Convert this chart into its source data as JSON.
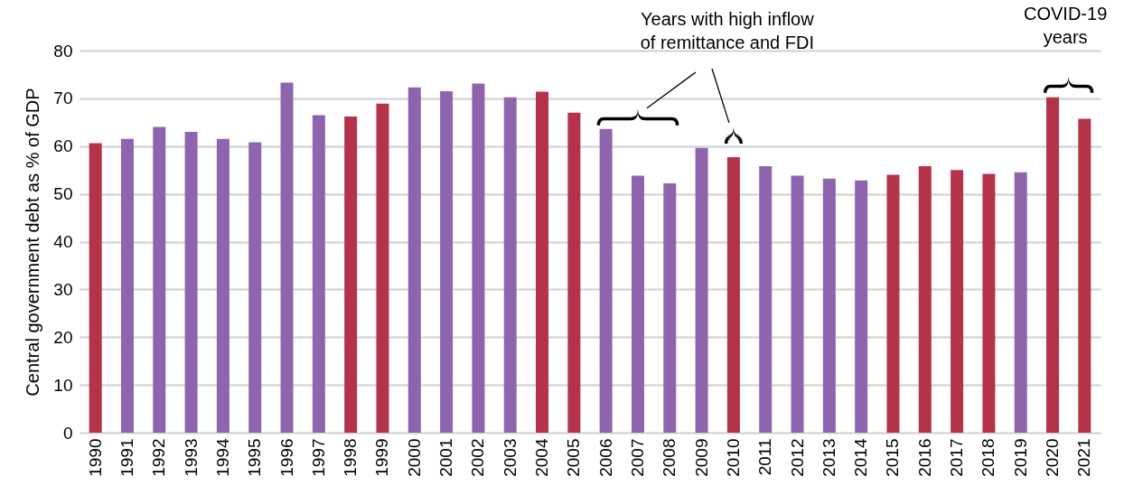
{
  "chart_data": {
    "type": "bar",
    "ylabel": "Central government debt as % of GDP",
    "categories": [
      "1990",
      "1991",
      "1992",
      "1993",
      "1994",
      "1995",
      "1996",
      "1997",
      "1998",
      "1999",
      "2000",
      "2001",
      "2002",
      "2003",
      "2004",
      "2005",
      "2006",
      "2007",
      "2008",
      "2009",
      "2010",
      "2011",
      "2012",
      "2013",
      "2014",
      "2015",
      "2016",
      "2017",
      "2018",
      "2019",
      "2020",
      "2021"
    ],
    "values": [
      60.6,
      61.5,
      64,
      63,
      61.5,
      60.8,
      73.3,
      66.5,
      66.2,
      68.9,
      72.3,
      71.5,
      73.1,
      70.2,
      71.4,
      67,
      63.6,
      53.8,
      52.2,
      59.6,
      57.7,
      55.8,
      53.8,
      53.2,
      52.8,
      54,
      55.8,
      55,
      54.2,
      54.5,
      70.2,
      65.7
    ],
    "colors": [
      "#b5334a",
      "#8e65ad",
      "#8e65ad",
      "#8e65ad",
      "#8e65ad",
      "#8e65ad",
      "#8e65ad",
      "#8e65ad",
      "#b5334a",
      "#b5334a",
      "#8e65ad",
      "#8e65ad",
      "#8e65ad",
      "#8e65ad",
      "#b5334a",
      "#b5334a",
      "#8e65ad",
      "#8e65ad",
      "#8e65ad",
      "#8e65ad",
      "#b5334a",
      "#8e65ad",
      "#8e65ad",
      "#8e65ad",
      "#8e65ad",
      "#b5334a",
      "#b5334a",
      "#b5334a",
      "#b5334a",
      "#8e65ad",
      "#b5334a",
      "#b5334a"
    ],
    "ylim": [
      0,
      80
    ],
    "yticks": [
      0,
      10,
      20,
      30,
      40,
      50,
      60,
      70,
      80
    ],
    "grid": "y",
    "annotations": [
      "Years with high inflow of remittance and FDI",
      "COVID-19 years"
    ]
  }
}
